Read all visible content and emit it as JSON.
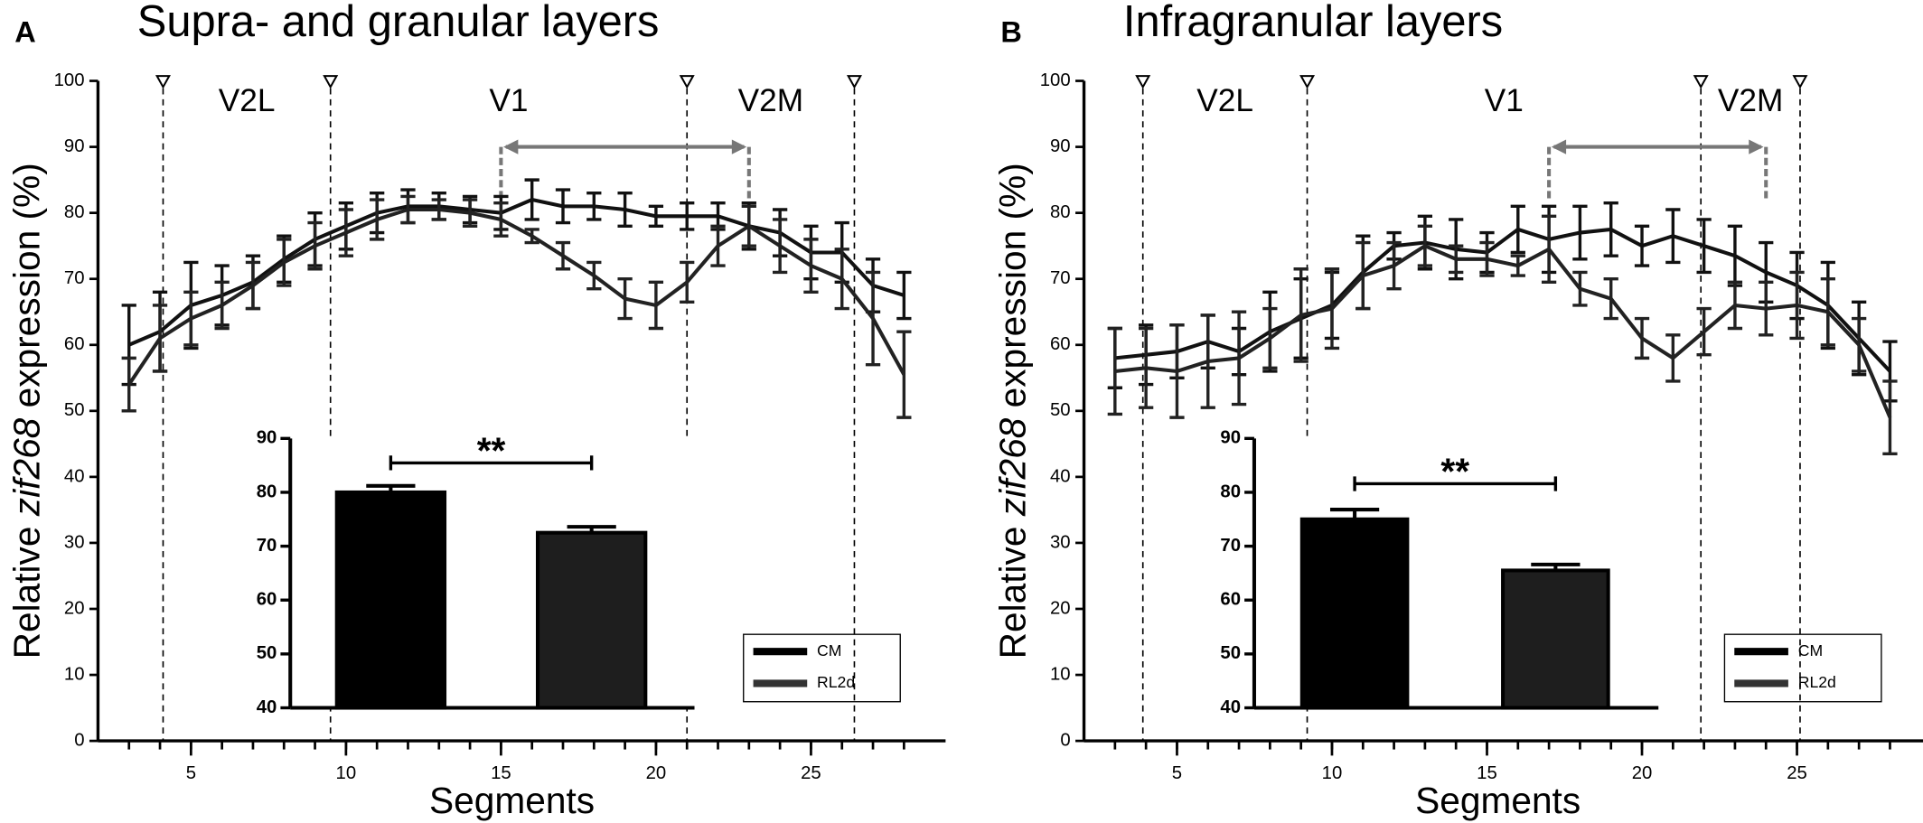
{
  "chart_data": [
    {
      "type": "line",
      "panel": "A",
      "title": "Supra- and granular layers",
      "xlabel": "Segments",
      "ylabel": [
        "Relative ",
        "zif268",
        " expression (%)"
      ],
      "xlim": [
        2,
        29.5
      ],
      "xticks": [
        5,
        10,
        15,
        20,
        25
      ],
      "ylim": [
        0,
        100
      ],
      "yticks": [
        0,
        10,
        20,
        30,
        40,
        50,
        60,
        70,
        80,
        90,
        100
      ],
      "x": [
        3,
        4,
        5,
        6,
        7,
        8,
        9,
        10,
        11,
        12,
        13,
        14,
        15,
        16,
        17,
        18,
        19,
        20,
        21,
        22,
        23,
        24,
        25,
        26,
        27,
        28
      ],
      "series": [
        {
          "color": "#111111",
          "values": [
            60,
            62,
            66,
            67.5,
            69.5,
            73,
            76,
            78,
            80,
            81,
            81,
            80.5,
            80,
            82,
            81,
            81,
            80.5,
            79.5,
            79.5,
            79.5,
            78,
            77,
            74,
            74,
            69,
            67.5
          ],
          "errors": [
            6,
            6,
            6.5,
            4.5,
            4,
            3.5,
            4,
            3.5,
            3,
            2.5,
            2,
            2,
            2.5,
            3,
            2.5,
            2,
            2.5,
            1.5,
            2,
            2,
            3.5,
            3.5,
            4,
            4.5,
            4,
            3.5
          ]
        },
        {
          "color": "#222222",
          "values": [
            54,
            61,
            64,
            66,
            69,
            72.5,
            75,
            77,
            79,
            80.5,
            80.5,
            80,
            79,
            76.5,
            73.5,
            70.5,
            67,
            66,
            69.5,
            75,
            78,
            75,
            72,
            70,
            64,
            55.5
          ],
          "errors": [
            4,
            5,
            4,
            3.5,
            3.5,
            3.5,
            3.5,
            3.5,
            3,
            2,
            1.5,
            2,
            2.5,
            1,
            2,
            2,
            3,
            3.5,
            3,
            3,
            3,
            4,
            4,
            4.5,
            7,
            6.5
          ]
        }
      ],
      "regions": [
        "V2L",
        "V1",
        "V2M"
      ],
      "boundaries": [
        4.1,
        9.5,
        21,
        26.4
      ],
      "arrow": {
        "from": 15,
        "to": 23,
        "y": 90
      },
      "inset": {
        "type": "bar",
        "ylim": [
          40,
          90
        ],
        "yticks": [
          40,
          50,
          60,
          70,
          80,
          90
        ],
        "annotation": "**",
        "series": [
          {
            "name": "CM",
            "color": "#000000",
            "values": [
              80
            ],
            "errors": [
              1.2
            ]
          },
          {
            "name": "RL2d",
            "color": "#1e1e1e",
            "values": [
              72.5
            ],
            "errors": [
              1.1
            ]
          }
        ]
      }
    },
    {
      "type": "line",
      "panel": "B",
      "title": "Infragranular layers",
      "xlabel": "Segments",
      "ylabel": [
        "Relative ",
        "zif268",
        " expression (%)"
      ],
      "xlim": [
        2,
        29.5
      ],
      "xticks": [
        5,
        10,
        15,
        20,
        25
      ],
      "ylim": [
        0,
        100
      ],
      "yticks": [
        0,
        10,
        20,
        30,
        40,
        50,
        60,
        70,
        80,
        90,
        100
      ],
      "x": [
        3,
        4,
        5,
        6,
        7,
        8,
        9,
        10,
        11,
        12,
        13,
        14,
        15,
        16,
        17,
        18,
        19,
        20,
        21,
        22,
        23,
        24,
        25,
        26,
        27,
        28
      ],
      "series": [
        {
          "color": "#111111",
          "values": [
            58,
            58.5,
            59,
            60.5,
            59,
            62,
            64,
            66,
            71,
            75,
            75.5,
            74.5,
            74,
            77.5,
            76,
            77,
            77.5,
            75,
            76.5,
            75,
            73.5,
            71,
            69,
            66,
            61,
            56
          ],
          "errors": [
            4.5,
            4.5,
            4,
            4,
            3.5,
            6,
            6,
            5,
            5.5,
            2,
            4,
            4.5,
            3,
            3.5,
            5,
            4,
            4,
            3,
            4,
            4,
            4.5,
            4.5,
            5,
            6.5,
            5.5,
            4.5
          ]
        },
        {
          "color": "#222222",
          "values": [
            56,
            56.5,
            56,
            57.5,
            58,
            61,
            64.5,
            65.5,
            70.5,
            72,
            75,
            73,
            73,
            72,
            74.5,
            68.5,
            67,
            61,
            58,
            62,
            66,
            65.5,
            66,
            65,
            60,
            49
          ],
          "errors": [
            6.5,
            6,
            7,
            7,
            7,
            4.5,
            7,
            6,
            5,
            3.5,
            3,
            2,
            2.5,
            1.5,
            5,
            2.5,
            3,
            3,
            3.5,
            3.5,
            3.5,
            4,
            5,
            5,
            4,
            5.5
          ]
        }
      ],
      "regions": [
        "V2L",
        "V1",
        "V2M"
      ],
      "boundaries": [
        3.9,
        9.2,
        21.9,
        25.1
      ],
      "arrow": {
        "from": 17,
        "to": 24,
        "y": 90
      },
      "inset": {
        "type": "bar",
        "ylim": [
          40,
          90
        ],
        "yticks": [
          40,
          50,
          60,
          70,
          80,
          90
        ],
        "annotation": "**",
        "series": [
          {
            "name": "CM",
            "color": "#000000",
            "values": [
              75
            ],
            "errors": [
              1.8
            ]
          },
          {
            "name": "RL2d",
            "color": "#1e1e1e",
            "values": [
              65.5
            ],
            "errors": [
              1.1
            ]
          }
        ]
      }
    }
  ]
}
